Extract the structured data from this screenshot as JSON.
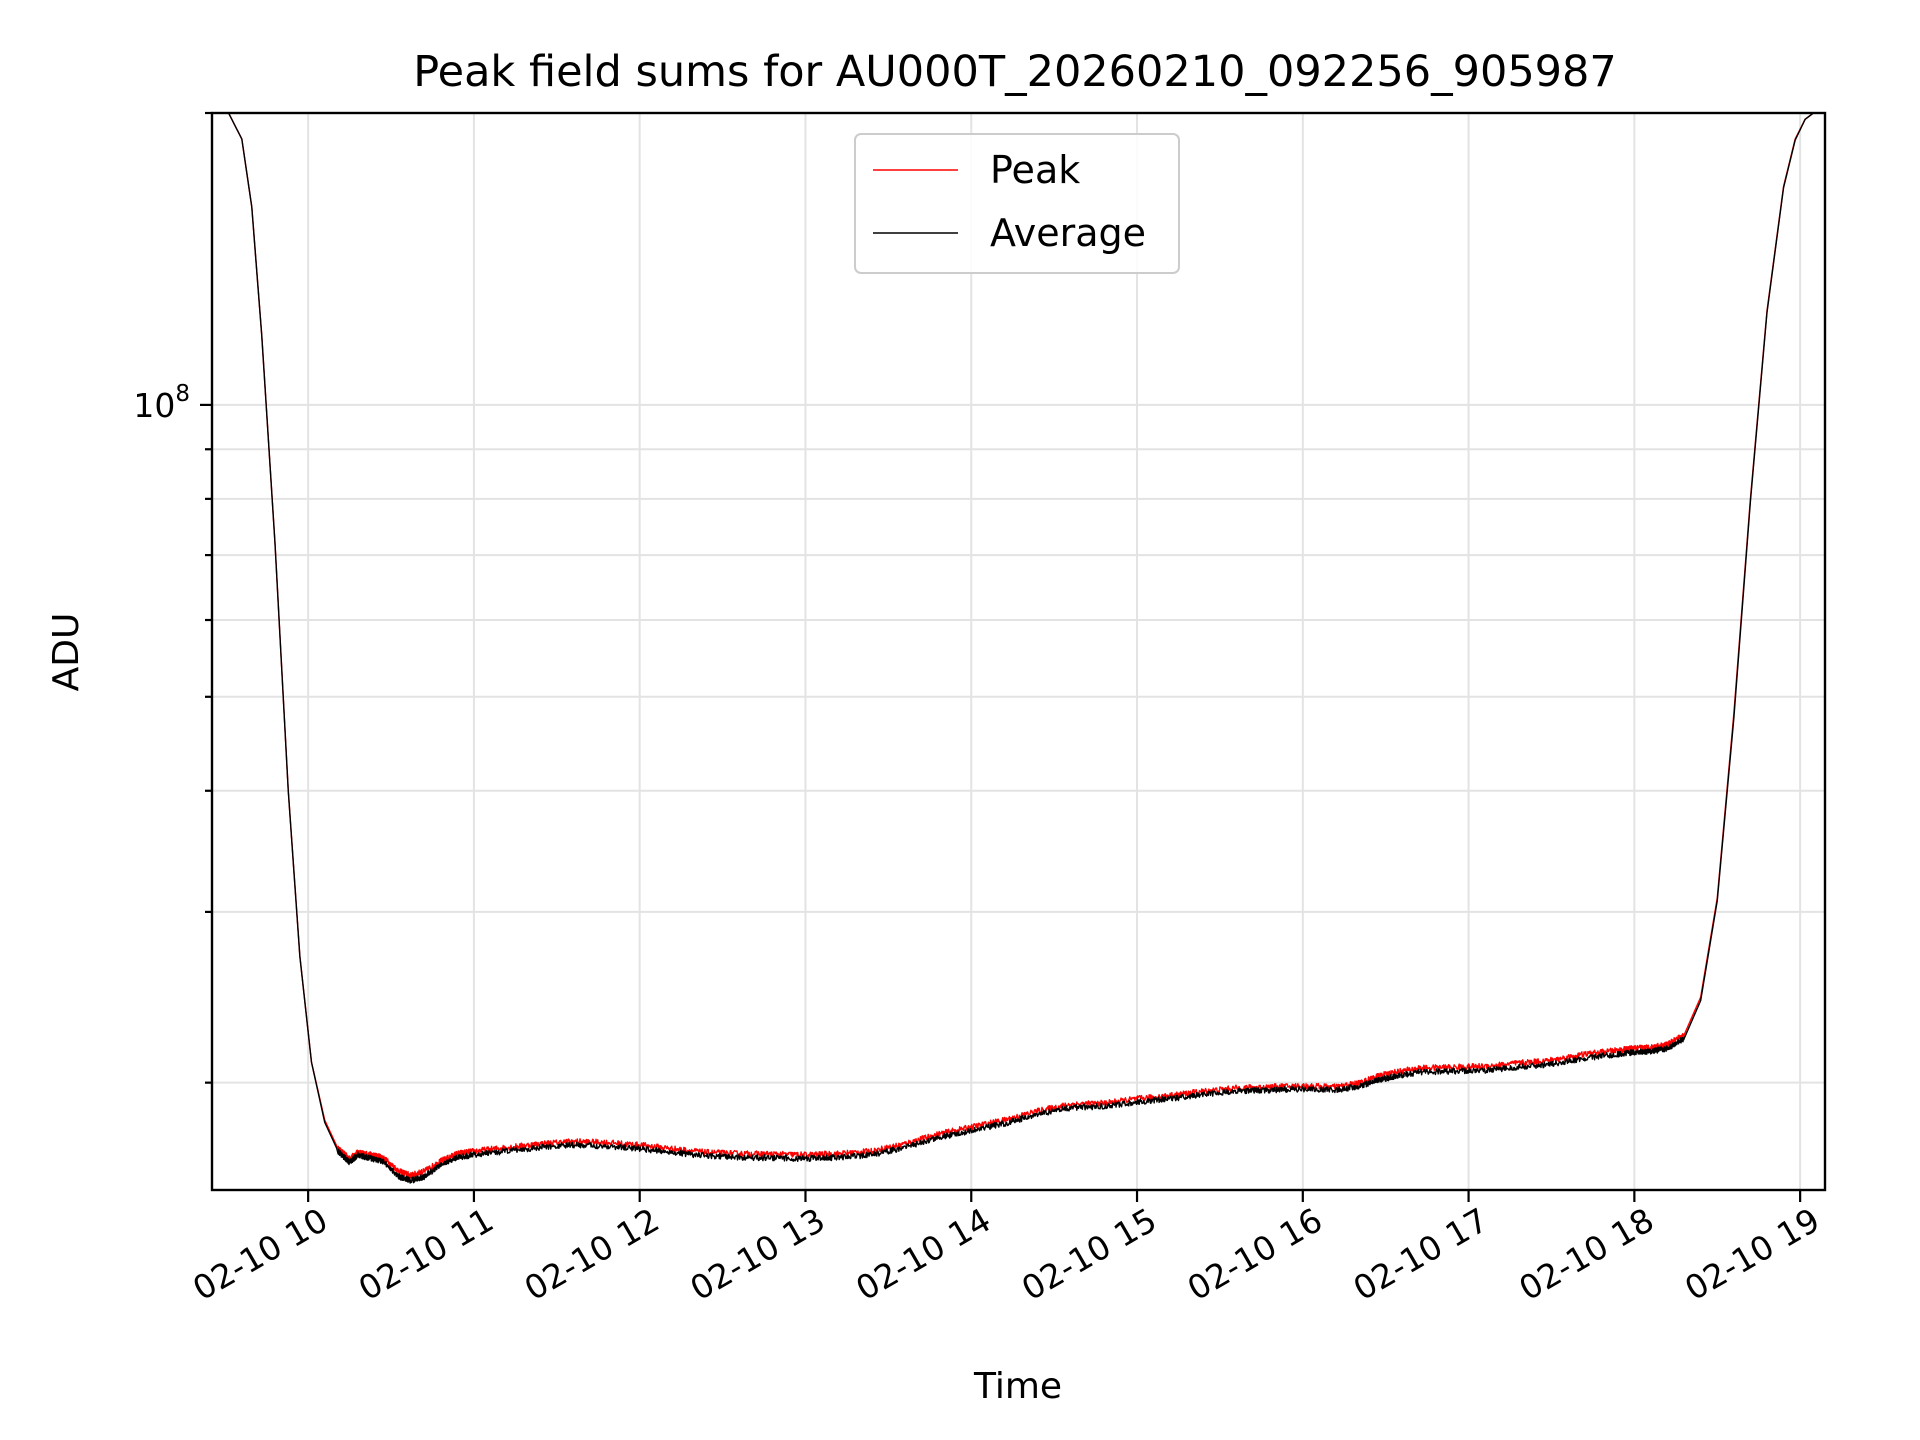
{
  "chart_data": {
    "type": "line",
    "title": "Peak field sums for AU000T_20260210_092256_905987",
    "xlabel": "Time",
    "ylabel": "ADU",
    "yscale": "log",
    "ylim": [
      15500000,
      200000000
    ],
    "xlim": [
      9.42,
      19.15
    ],
    "grid": true,
    "legend_position": "upper-center",
    "x_ticks": [
      {
        "value": 10,
        "label": "02-10 10"
      },
      {
        "value": 11,
        "label": "02-10 11"
      },
      {
        "value": 12,
        "label": "02-10 12"
      },
      {
        "value": 13,
        "label": "02-10 13"
      },
      {
        "value": 14,
        "label": "02-10 14"
      },
      {
        "value": 15,
        "label": "02-10 15"
      },
      {
        "value": 16,
        "label": "02-10 16"
      },
      {
        "value": 17,
        "label": "02-10 17"
      },
      {
        "value": 18,
        "label": "02-10 18"
      },
      {
        "value": 19,
        "label": "02-10 19"
      }
    ],
    "y_major_ticks": [
      {
        "value": 100000000,
        "base": "10",
        "exp": "8"
      }
    ],
    "y_minor_ticks": [
      20000000,
      30000000,
      40000000,
      50000000,
      60000000,
      70000000,
      80000000,
      90000000,
      200000000
    ],
    "series": [
      {
        "name": "Peak",
        "color": "#ff0000",
        "x": [
          9.42,
          9.52,
          9.6,
          9.66,
          9.72,
          9.8,
          9.88,
          9.95,
          10.02,
          10.1,
          10.18,
          10.25,
          10.3,
          10.38,
          10.45,
          10.55,
          10.62,
          10.7,
          10.8,
          10.9,
          11.0,
          11.2,
          11.4,
          11.6,
          11.8,
          12.0,
          12.2,
          12.4,
          12.6,
          12.8,
          13.0,
          13.2,
          13.4,
          13.6,
          13.8,
          14.0,
          14.2,
          14.4,
          14.6,
          14.8,
          15.0,
          15.2,
          15.4,
          15.6,
          15.8,
          16.0,
          16.2,
          16.35,
          16.45,
          16.55,
          16.7,
          16.9,
          17.1,
          17.3,
          17.5,
          17.7,
          17.9,
          18.0,
          18.1,
          18.2,
          18.3,
          18.4,
          18.5,
          18.6,
          18.7,
          18.8,
          18.9,
          18.97,
          19.03,
          19.08,
          19.15
        ],
        "y": [
          200000000,
          200000000,
          188000000,
          160000000,
          118000000,
          72000000,
          40000000,
          27000000,
          21000000,
          18300000,
          17100000,
          16700000,
          16950000,
          16850000,
          16750000,
          16200000,
          16050000,
          16200000,
          16600000,
          16900000,
          17000000,
          17150000,
          17300000,
          17400000,
          17350000,
          17250000,
          17100000,
          16950000,
          16900000,
          16880000,
          16850000,
          16900000,
          17000000,
          17300000,
          17700000,
          18000000,
          18300000,
          18700000,
          19000000,
          19050000,
          19250000,
          19400000,
          19600000,
          19750000,
          19800000,
          19850000,
          19800000,
          20000000,
          20300000,
          20500000,
          20700000,
          20750000,
          20800000,
          20950000,
          21100000,
          21400000,
          21600000,
          21700000,
          21750000,
          21900000,
          22400000,
          24500000,
          31000000,
          48000000,
          80000000,
          125000000,
          168000000,
          188000000,
          197000000,
          200000000,
          200000000
        ]
      },
      {
        "name": "Average",
        "color": "#000000",
        "x": [
          9.42,
          9.52,
          9.6,
          9.66,
          9.72,
          9.8,
          9.88,
          9.95,
          10.02,
          10.1,
          10.18,
          10.25,
          10.3,
          10.38,
          10.45,
          10.55,
          10.62,
          10.7,
          10.8,
          10.9,
          11.0,
          11.2,
          11.4,
          11.6,
          11.8,
          12.0,
          12.2,
          12.4,
          12.6,
          12.8,
          13.0,
          13.2,
          13.4,
          13.6,
          13.8,
          14.0,
          14.2,
          14.4,
          14.6,
          14.8,
          15.0,
          15.2,
          15.4,
          15.6,
          15.8,
          16.0,
          16.2,
          16.35,
          16.45,
          16.55,
          16.7,
          16.9,
          17.1,
          17.3,
          17.5,
          17.7,
          17.9,
          18.0,
          18.1,
          18.2,
          18.3,
          18.4,
          18.5,
          18.6,
          18.7,
          18.8,
          18.9,
          18.97,
          19.03,
          19.08,
          19.15
        ],
        "y": [
          200000000,
          200000000,
          188000000,
          160000000,
          118000000,
          72000000,
          40000000,
          27000000,
          21000000,
          18200000,
          17000000,
          16550000,
          16850000,
          16700000,
          16600000,
          16000000,
          15850000,
          16000000,
          16450000,
          16750000,
          16850000,
          17000000,
          17150000,
          17250000,
          17200000,
          17100000,
          16950000,
          16800000,
          16750000,
          16730000,
          16700000,
          16750000,
          16850000,
          17150000,
          17550000,
          17850000,
          18150000,
          18550000,
          18850000,
          18900000,
          19100000,
          19250000,
          19450000,
          19600000,
          19650000,
          19700000,
          19650000,
          19850000,
          20100000,
          20300000,
          20500000,
          20550000,
          20600000,
          20750000,
          20900000,
          21200000,
          21400000,
          21500000,
          21550000,
          21700000,
          22200000,
          24300000,
          30800000,
          47500000,
          79500000,
          124500000,
          167500000,
          187500000,
          197000000,
          200000000,
          200000000
        ]
      }
    ]
  }
}
